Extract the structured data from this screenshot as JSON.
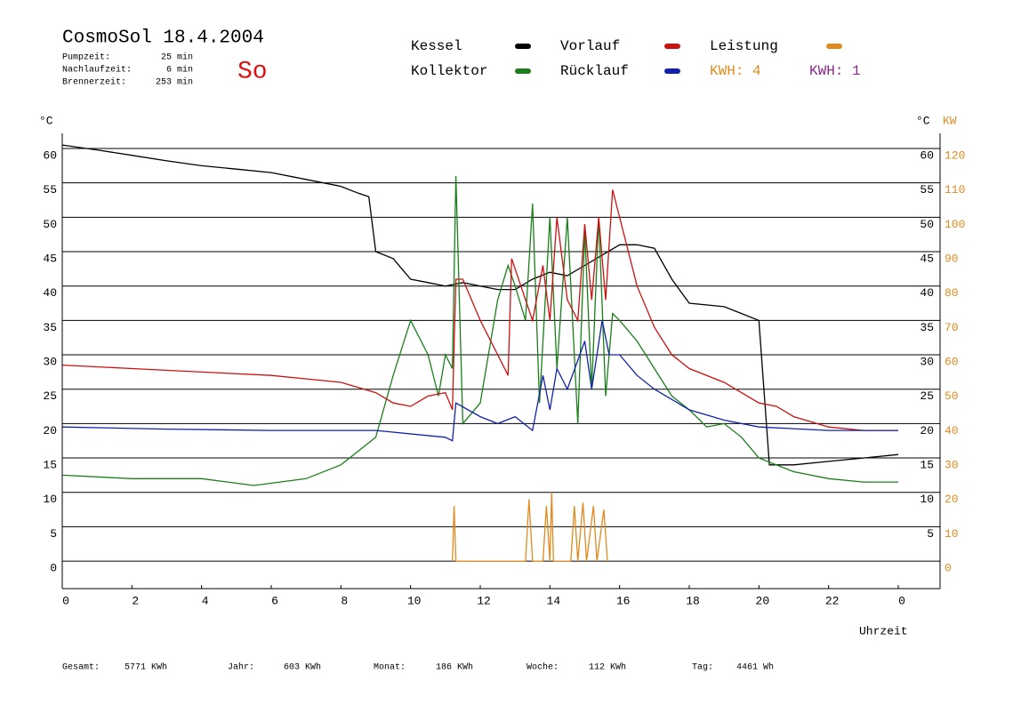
{
  "chart_data": {
    "type": "line",
    "title": "CosmoSol 18.4.2004",
    "status": "So",
    "info": [
      [
        "Pumpzeit:",
        "25 min"
      ],
      [
        "Nachlaufzeit:",
        "6 min"
      ],
      [
        "Brennerzeit:",
        "253 min"
      ]
    ],
    "y_label": "°C",
    "y2_label_c": "°C",
    "y2_label": "KW",
    "x_label": "Uhrzeit",
    "kwh_labels": [
      {
        "text": "KWH: 4",
        "color": "#e08a1e"
      },
      {
        "text": "KWH: 1",
        "color": "#8b2a8b"
      }
    ],
    "footer": [
      [
        "Gesamt:",
        "5771 KWh"
      ],
      [
        "Jahr:",
        "603 KWh"
      ],
      [
        "Monat:",
        "186 KWh"
      ],
      [
        "Woche:",
        "112 KWh"
      ],
      [
        "Tag:",
        "4461 Wh"
      ]
    ],
    "xlim": [
      0,
      25.2
    ],
    "ylim": [
      -4,
      62.2
    ],
    "y2lim": [
      -8,
      124.4
    ],
    "xticks": [
      0,
      2,
      4,
      6,
      8,
      10,
      12,
      14,
      16,
      18,
      20,
      22,
      {
        "value": 24,
        "label": "0"
      }
    ],
    "yticks": [
      0,
      5,
      10,
      15,
      20,
      25,
      30,
      35,
      40,
      45,
      50,
      55,
      60
    ],
    "y2ticks": [
      0,
      10,
      20,
      30,
      40,
      50,
      60,
      70,
      80,
      90,
      100,
      110,
      120
    ],
    "grid": true,
    "series": [
      {
        "name": "Kessel",
        "color": "#000000",
        "x": [
          0,
          1,
          2,
          3,
          4,
          5,
          6,
          7,
          8,
          8.5,
          8.8,
          9,
          9.5,
          10,
          10.5,
          11,
          11.5,
          12,
          12.5,
          13,
          13.5,
          14,
          14.5,
          15,
          15.5,
          16,
          16.5,
          17,
          17.5,
          18,
          19,
          19.5,
          20,
          20.3,
          21,
          22,
          23,
          24
        ],
        "values": [
          60.5,
          59.8,
          59,
          58.2,
          57.5,
          57,
          56.5,
          55.5,
          54.5,
          53.5,
          53,
          45,
          44,
          41,
          40.5,
          40,
          40.5,
          40,
          39.5,
          39.5,
          41,
          42,
          41.5,
          43,
          44.5,
          46,
          46,
          45.5,
          41,
          37.5,
          37,
          36,
          35,
          14,
          14,
          14.5,
          15,
          15.5
        ]
      },
      {
        "name": "Kollektor",
        "color": "#1a7f1a",
        "x": [
          0,
          2,
          4,
          5.5,
          7,
          8,
          9,
          9.5,
          10,
          10.5,
          10.8,
          11,
          11.2,
          11.3,
          11.5,
          12,
          12.5,
          12.8,
          13,
          13.3,
          13.5,
          13.7,
          14,
          14.2,
          14.5,
          14.8,
          15,
          15.2,
          15.4,
          15.6,
          15.8,
          16,
          16.5,
          17,
          17.5,
          18,
          18.5,
          19,
          19.5,
          20,
          21,
          22,
          23,
          24
        ],
        "values": [
          12.5,
          12,
          12,
          11,
          12,
          14,
          18,
          27,
          35,
          30,
          24,
          30,
          28,
          56,
          20,
          23,
          38,
          43,
          40,
          35,
          52,
          23,
          50,
          28,
          50,
          20,
          48,
          25,
          50,
          24,
          36,
          35,
          32,
          28,
          24,
          22,
          19.5,
          20,
          18,
          15,
          13,
          12,
          11.5,
          11.5
        ]
      },
      {
        "name": "Vorlauf",
        "color": "#cc1111",
        "x": [
          0,
          2,
          4,
          6,
          7,
          8,
          9,
          9.5,
          10,
          10.5,
          11,
          11.2,
          11.3,
          11.5,
          12,
          12.5,
          12.8,
          12.9,
          13.3,
          13.5,
          13.8,
          14,
          14.2,
          14.5,
          14.8,
          15,
          15.2,
          15.4,
          15.6,
          15.8,
          16,
          16.5,
          17,
          17.5,
          18,
          19,
          20,
          20.5,
          21,
          22,
          23,
          24
        ],
        "values": [
          28.5,
          28,
          27.5,
          27,
          26.5,
          26,
          24.5,
          23,
          22.5,
          24,
          24.5,
          22,
          41,
          41,
          35,
          30,
          27,
          44,
          38,
          35,
          43,
          35,
          50,
          38,
          35,
          49,
          38,
          50,
          38,
          54,
          50,
          40,
          34,
          30,
          28,
          26,
          23,
          22.5,
          21,
          19.5,
          19,
          19
        ]
      },
      {
        "name": "Rücklauf",
        "color": "#1122aa",
        "x": [
          0,
          3,
          6,
          9,
          11,
          11.2,
          11.3,
          12,
          12.5,
          13,
          13.5,
          13.8,
          14,
          14.2,
          14.5,
          15,
          15.2,
          15.5,
          15.7,
          16,
          16.5,
          17,
          18,
          19,
          20,
          22,
          24
        ],
        "values": [
          19.5,
          19.2,
          19,
          19,
          18,
          17.5,
          23,
          21,
          20,
          21,
          19,
          27,
          22,
          28,
          25,
          32,
          25,
          35,
          30,
          30,
          27,
          25,
          22,
          20.5,
          19.5,
          19,
          19
        ]
      },
      {
        "name": "Leistung",
        "color": "#e08a1e",
        "axis": "y2",
        "x": [
          11.2,
          11.25,
          11.3,
          13.3,
          13.4,
          13.5,
          13.8,
          13.9,
          14,
          14.05,
          14.1,
          14.6,
          14.7,
          14.8,
          14.95,
          15.05,
          15.25,
          15.35,
          15.55,
          15.65
        ],
        "values": [
          0,
          16,
          0,
          0,
          18,
          0,
          0,
          16,
          0,
          20,
          0,
          0,
          16,
          0,
          17,
          0,
          16,
          0,
          15,
          0
        ]
      }
    ]
  }
}
